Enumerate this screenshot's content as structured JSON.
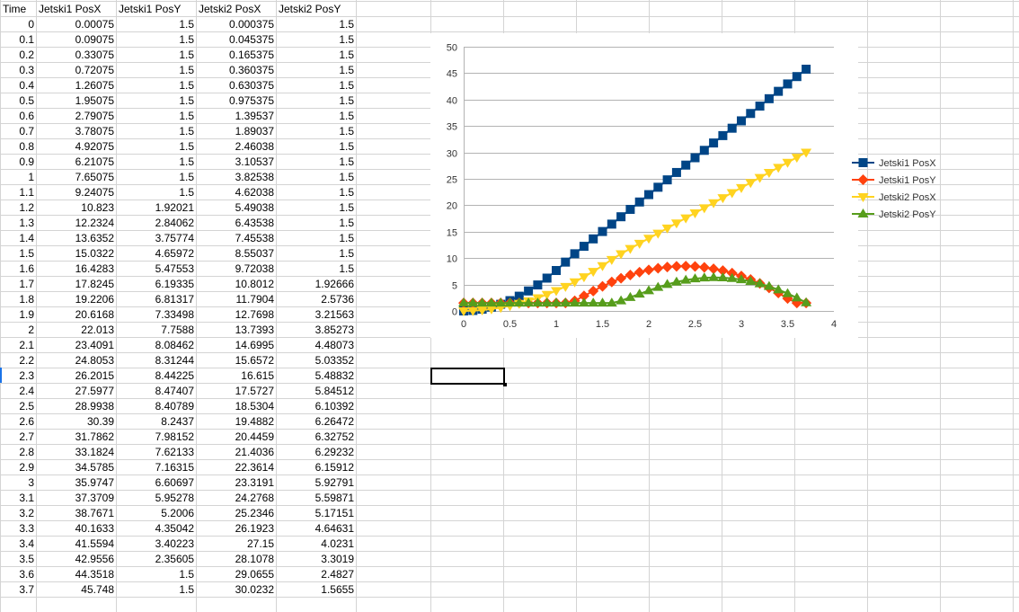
{
  "sheet": {
    "headers": [
      "Time",
      "Jetski1 PosX",
      "Jetski1 PosY",
      "Jetski2 PosX",
      "Jetski2 PosY"
    ],
    "rows": [
      [
        "0",
        "0.00075",
        "1.5",
        "0.000375",
        "1.5"
      ],
      [
        "0.1",
        "0.09075",
        "1.5",
        "0.045375",
        "1.5"
      ],
      [
        "0.2",
        "0.33075",
        "1.5",
        "0.165375",
        "1.5"
      ],
      [
        "0.3",
        "0.72075",
        "1.5",
        "0.360375",
        "1.5"
      ],
      [
        "0.4",
        "1.26075",
        "1.5",
        "0.630375",
        "1.5"
      ],
      [
        "0.5",
        "1.95075",
        "1.5",
        "0.975375",
        "1.5"
      ],
      [
        "0.6",
        "2.79075",
        "1.5",
        "1.39537",
        "1.5"
      ],
      [
        "0.7",
        "3.78075",
        "1.5",
        "1.89037",
        "1.5"
      ],
      [
        "0.8",
        "4.92075",
        "1.5",
        "2.46038",
        "1.5"
      ],
      [
        "0.9",
        "6.21075",
        "1.5",
        "3.10537",
        "1.5"
      ],
      [
        "1",
        "7.65075",
        "1.5",
        "3.82538",
        "1.5"
      ],
      [
        "1.1",
        "9.24075",
        "1.5",
        "4.62038",
        "1.5"
      ],
      [
        "1.2",
        "10.823",
        "1.92021",
        "5.49038",
        "1.5"
      ],
      [
        "1.3",
        "12.2324",
        "2.84062",
        "6.43538",
        "1.5"
      ],
      [
        "1.4",
        "13.6352",
        "3.75774",
        "7.45538",
        "1.5"
      ],
      [
        "1.5",
        "15.0322",
        "4.65972",
        "8.55037",
        "1.5"
      ],
      [
        "1.6",
        "16.4283",
        "5.47553",
        "9.72038",
        "1.5"
      ],
      [
        "1.7",
        "17.8245",
        "6.19335",
        "10.8012",
        "1.92666"
      ],
      [
        "1.8",
        "19.2206",
        "6.81317",
        "11.7904",
        "2.5736"
      ],
      [
        "1.9",
        "20.6168",
        "7.33498",
        "12.7698",
        "3.21563"
      ],
      [
        "2",
        "22.013",
        "7.7588",
        "13.7393",
        "3.85273"
      ],
      [
        "2.1",
        "23.4091",
        "8.08462",
        "14.6995",
        "4.48073"
      ],
      [
        "2.2",
        "24.8053",
        "8.31244",
        "15.6572",
        "5.03352"
      ],
      [
        "2.3",
        "26.2015",
        "8.44225",
        "16.615",
        "5.48832"
      ],
      [
        "2.4",
        "27.5977",
        "8.47407",
        "17.5727",
        "5.84512"
      ],
      [
        "2.5",
        "28.9938",
        "8.40789",
        "18.5304",
        "6.10392"
      ],
      [
        "2.6",
        "30.39",
        "8.2437",
        "19.4882",
        "6.26472"
      ],
      [
        "2.7",
        "31.7862",
        "7.98152",
        "20.4459",
        "6.32752"
      ],
      [
        "2.8",
        "33.1824",
        "7.62133",
        "21.4036",
        "6.29232"
      ],
      [
        "2.9",
        "34.5785",
        "7.16315",
        "22.3614",
        "6.15912"
      ],
      [
        "3",
        "35.9747",
        "6.60697",
        "23.3191",
        "5.92791"
      ],
      [
        "3.1",
        "37.3709",
        "5.95278",
        "24.2768",
        "5.59871"
      ],
      [
        "3.2",
        "38.7671",
        "5.2006",
        "25.2346",
        "5.17151"
      ],
      [
        "3.3",
        "40.1633",
        "4.35042",
        "26.1923",
        "4.64631"
      ],
      [
        "3.4",
        "41.5594",
        "3.40223",
        "27.15",
        "4.0231"
      ],
      [
        "3.5",
        "42.9556",
        "2.35605",
        "28.1078",
        "3.3019"
      ],
      [
        "3.6",
        "44.3518",
        "1.5",
        "29.0655",
        "2.4827"
      ],
      [
        "3.7",
        "45.748",
        "1.5",
        "30.0232",
        "1.5655"
      ]
    ]
  },
  "colors": {
    "jetski1_posx": "#004586",
    "jetski1_posy": "#ff420e",
    "jetski2_posx": "#ffd320",
    "jetski2_posy": "#579d1c",
    "gridline": "#d4d4d4"
  },
  "chart_data": {
    "type": "scatter",
    "markers": [
      "square",
      "diamond",
      "triangle-down",
      "triangle-up"
    ],
    "xlim": [
      0,
      4
    ],
    "ylim": [
      0,
      50
    ],
    "x_ticks": [
      "0",
      "0.5",
      "1",
      "1.5",
      "2",
      "2.5",
      "3",
      "3.5",
      "4"
    ],
    "y_ticks": [
      "0",
      "5",
      "10",
      "15",
      "20",
      "25",
      "30",
      "35",
      "40",
      "45",
      "50"
    ],
    "grid": true,
    "legend": "right",
    "x": [
      0,
      0.1,
      0.2,
      0.3,
      0.4,
      0.5,
      0.6,
      0.7,
      0.8,
      0.9,
      1,
      1.1,
      1.2,
      1.3,
      1.4,
      1.5,
      1.6,
      1.7,
      1.8,
      1.9,
      2,
      2.1,
      2.2,
      2.3,
      2.4,
      2.5,
      2.6,
      2.7,
      2.8,
      2.9,
      3,
      3.1,
      3.2,
      3.3,
      3.4,
      3.5,
      3.6,
      3.7
    ],
    "series": [
      {
        "name": "Jetski1 PosX",
        "values": [
          0.00075,
          0.09075,
          0.33075,
          0.72075,
          1.26075,
          1.95075,
          2.79075,
          3.78075,
          4.92075,
          6.21075,
          7.65075,
          9.24075,
          10.823,
          12.2324,
          13.6352,
          15.0322,
          16.4283,
          17.8245,
          19.2206,
          20.6168,
          22.013,
          23.4091,
          24.8053,
          26.2015,
          27.5977,
          28.9938,
          30.39,
          31.7862,
          33.1824,
          34.5785,
          35.9747,
          37.3709,
          38.7671,
          40.1633,
          41.5594,
          42.9556,
          44.3518,
          45.748
        ]
      },
      {
        "name": "Jetski1 PosY",
        "values": [
          1.5,
          1.5,
          1.5,
          1.5,
          1.5,
          1.5,
          1.5,
          1.5,
          1.5,
          1.5,
          1.5,
          1.5,
          1.92021,
          2.84062,
          3.75774,
          4.65972,
          5.47553,
          6.19335,
          6.81317,
          7.33498,
          7.7588,
          8.08462,
          8.31244,
          8.44225,
          8.47407,
          8.40789,
          8.2437,
          7.98152,
          7.62133,
          7.16315,
          6.60697,
          5.95278,
          5.2006,
          4.35042,
          3.40223,
          2.35605,
          1.5,
          1.5
        ]
      },
      {
        "name": "Jetski2 PosX",
        "values": [
          0.000375,
          0.045375,
          0.165375,
          0.360375,
          0.630375,
          0.975375,
          1.39537,
          1.89037,
          2.46038,
          3.10537,
          3.82538,
          4.62038,
          5.49038,
          6.43538,
          7.45538,
          8.55037,
          9.72038,
          10.8012,
          11.7904,
          12.7698,
          13.7393,
          14.6995,
          15.6572,
          16.615,
          17.5727,
          18.5304,
          19.4882,
          20.4459,
          21.4036,
          22.3614,
          23.3191,
          24.2768,
          25.2346,
          26.1923,
          27.15,
          28.1078,
          29.0655,
          30.0232
        ]
      },
      {
        "name": "Jetski2 PosY",
        "values": [
          1.5,
          1.5,
          1.5,
          1.5,
          1.5,
          1.5,
          1.5,
          1.5,
          1.5,
          1.5,
          1.5,
          1.5,
          1.5,
          1.5,
          1.5,
          1.5,
          1.5,
          1.92666,
          2.5736,
          3.21563,
          3.85273,
          4.48073,
          5.03352,
          5.48832,
          5.84512,
          6.10392,
          6.26472,
          6.32752,
          6.29232,
          6.15912,
          5.92791,
          5.59871,
          5.17151,
          4.64631,
          4.0231,
          3.3019,
          2.4827,
          1.5655
        ]
      }
    ]
  }
}
